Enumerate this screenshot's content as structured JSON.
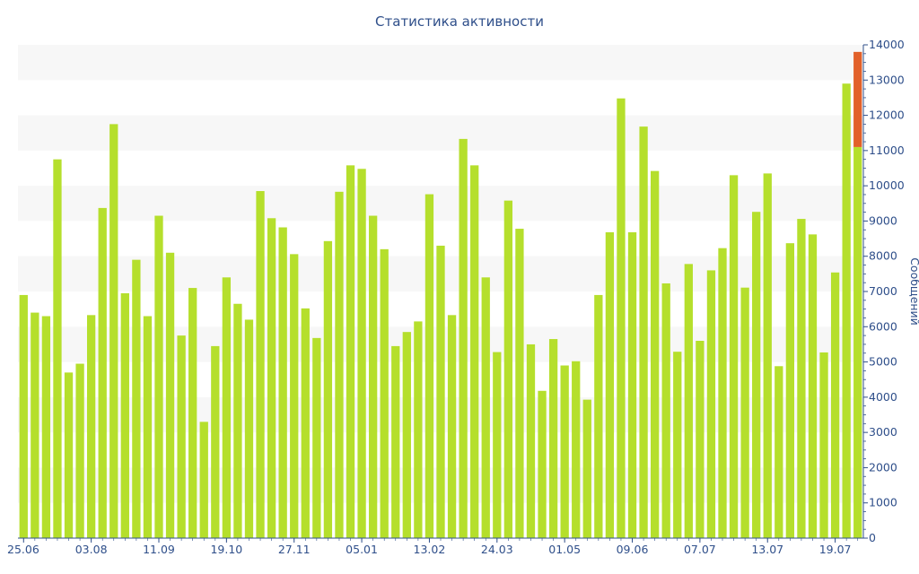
{
  "chart_data": {
    "type": "bar",
    "title": "Статистика активности",
    "ylabel": "Сообщений",
    "xlabel": "",
    "ylim": [
      0,
      14000
    ],
    "y_ticks": [
      0,
      1000,
      2000,
      3000,
      4000,
      5000,
      6000,
      7000,
      8000,
      9000,
      10000,
      11000,
      12000,
      13000,
      14000
    ],
    "x_tick_labels": [
      "25.06",
      "03.08",
      "11.09",
      "19.10",
      "27.11",
      "05.01",
      "13.02",
      "24.03",
      "01.05",
      "09.06",
      "07.07",
      "13.07",
      "19.07"
    ],
    "x_tick_bar_index": [
      0,
      6,
      12,
      18,
      24,
      30,
      36,
      42,
      48,
      54,
      60,
      66,
      72
    ],
    "y_axis_side": "right",
    "grid": "alternating horizontal bands",
    "colors": {
      "bar": "#b5df2c",
      "highlight": "#e2612a",
      "text": "#2f4f8a",
      "band": "#f7f7f7"
    },
    "series": [
      {
        "values": [
          6900,
          6400,
          6300,
          10750,
          4700,
          4950,
          6330,
          9370,
          11750,
          6950,
          7900,
          6300,
          9150,
          8100,
          5750,
          7100,
          3300,
          5450,
          7400,
          6650,
          6200,
          9850,
          9080,
          8820,
          8060,
          6520,
          5680,
          8430,
          9830,
          10580,
          10480,
          9150,
          8200,
          5450,
          5850,
          6150,
          9760,
          8300,
          6330,
          11330,
          10580,
          7400,
          5280,
          9580,
          8780,
          5500,
          4180,
          5650,
          4900,
          5020,
          3930,
          6900,
          8680,
          12480,
          8680,
          11680,
          10420,
          7230,
          5290,
          7780,
          5600,
          7600,
          8230,
          10300,
          7110,
          9260,
          10350,
          4880,
          8370,
          9060,
          8620,
          5270,
          7540,
          12900,
          11100
        ]
      },
      {
        "values": [
          0,
          0,
          0,
          0,
          0,
          0,
          0,
          0,
          0,
          0,
          0,
          0,
          0,
          0,
          0,
          0,
          0,
          0,
          0,
          0,
          0,
          0,
          0,
          0,
          0,
          0,
          0,
          0,
          0,
          0,
          0,
          0,
          0,
          0,
          0,
          0,
          0,
          0,
          0,
          0,
          0,
          0,
          0,
          0,
          0,
          0,
          0,
          0,
          0,
          0,
          0,
          0,
          0,
          0,
          0,
          0,
          0,
          0,
          0,
          0,
          0,
          0,
          0,
          0,
          0,
          0,
          0,
          0,
          0,
          0,
          0,
          0,
          0,
          0,
          2700
        ]
      }
    ]
  }
}
